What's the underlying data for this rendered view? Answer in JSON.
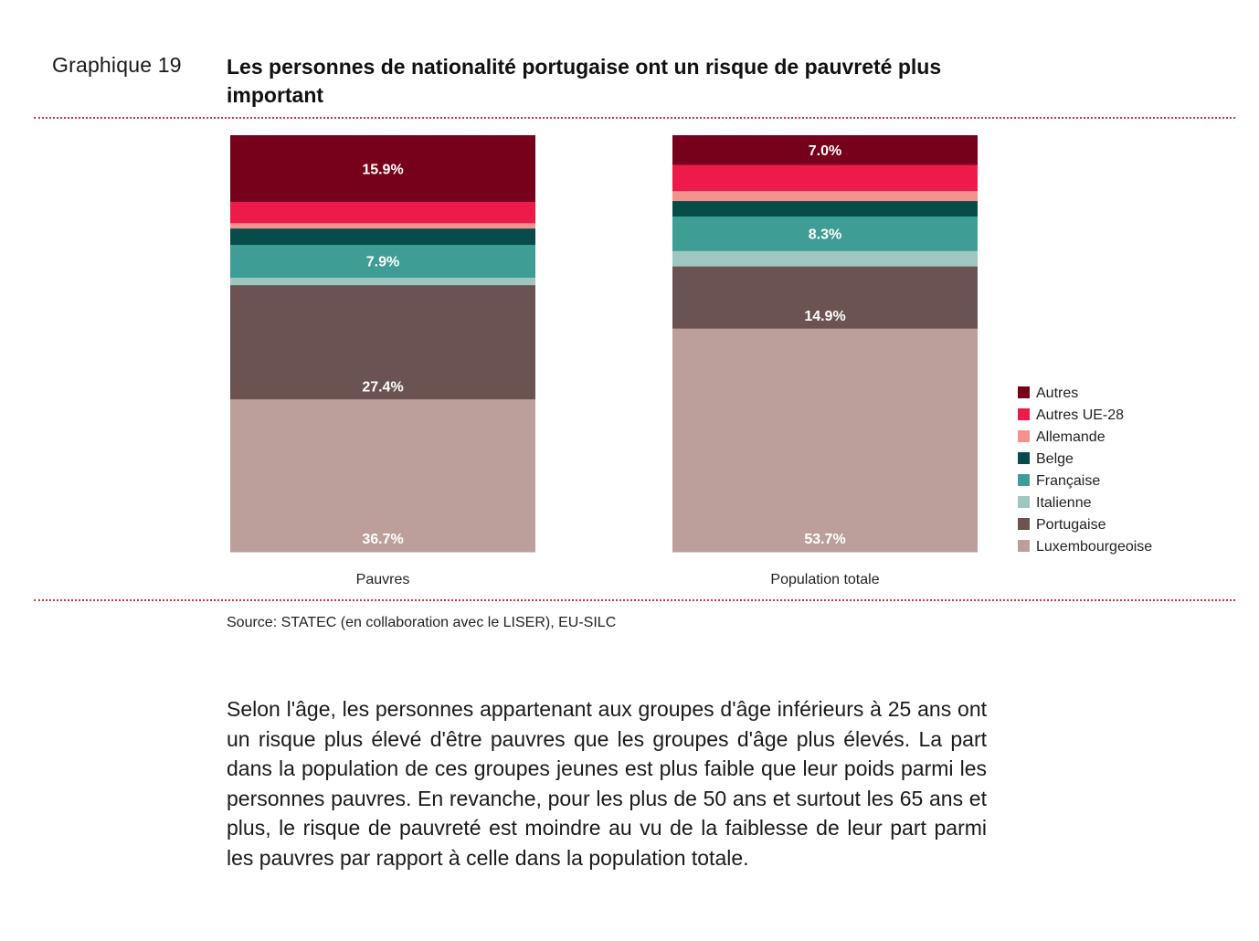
{
  "figure": {
    "number": "Graphique 19",
    "title": "Les personnes de nationalité portugaise ont un risque de pauvreté plus important"
  },
  "source": "Source: STATEC (en collaboration avec le LISER), EU-SILC",
  "body_text": "Selon l'âge, les personnes appartenant aux groupes d'âge inférieurs à 25 ans ont un risque plus élevé d'être pauvres que les groupes d'âge plus élevés. La part dans la population de ces groupes jeunes est plus faible que leur poids parmi les personnes pauvres. En revanche, pour les plus de 50 ans et surtout les 65 ans et plus, le risque de pauvreté est moindre au vu de la faiblesse de leur part parmi les pauvres par rapport à celle dans la population totale.",
  "chart_data": {
    "type": "bar",
    "stacked": true,
    "normalized": true,
    "title": "Les personnes de nationalité portugaise ont un risque de pauvreté plus important",
    "xlabel": "",
    "ylabel": "",
    "ylim": [
      0,
      100
    ],
    "grid": false,
    "legend_position": "right",
    "categories": [
      "Pauvres",
      "Population totale"
    ],
    "series": [
      {
        "name": "Luxembourgeoise",
        "color": "#bc9f9b",
        "values": [
          36.7,
          53.7
        ],
        "labels": [
          "36.7%",
          "53.7%"
        ]
      },
      {
        "name": "Portugaise",
        "color": "#6a5351",
        "values": [
          27.4,
          14.9
        ],
        "labels": [
          "27.4%",
          "14.9%"
        ]
      },
      {
        "name": "Italienne",
        "color": "#9ec7c2",
        "values": [
          1.8,
          3.7
        ],
        "labels": [
          "",
          ""
        ]
      },
      {
        "name": "Française",
        "color": "#3e9e96",
        "values": [
          7.9,
          8.3
        ],
        "labels": [
          "7.9%",
          "8.3%"
        ]
      },
      {
        "name": "Belge",
        "color": "#074c49",
        "values": [
          3.9,
          3.7
        ],
        "labels": [
          "",
          ""
        ]
      },
      {
        "name": "Allemande",
        "color": "#f4938d",
        "values": [
          1.3,
          2.4
        ],
        "labels": [
          "",
          ""
        ]
      },
      {
        "name": "Autres UE-28",
        "color": "#ee1a4a",
        "values": [
          5.1,
          6.3
        ],
        "labels": [
          "",
          ""
        ]
      },
      {
        "name": "Autres",
        "color": "#77001b",
        "values": [
          15.9,
          7.0
        ],
        "labels": [
          "15.9%",
          "7.0%"
        ]
      }
    ],
    "legend_order": [
      "Autres",
      "Autres UE-28",
      "Allemande",
      "Belge",
      "Française",
      "Italienne",
      "Portugaise",
      "Luxembourgeoise"
    ]
  }
}
